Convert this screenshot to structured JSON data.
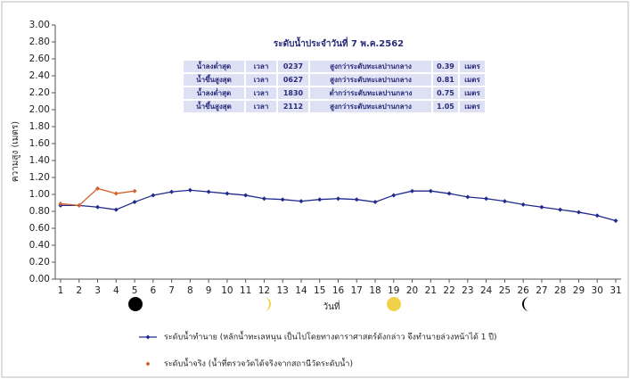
{
  "chart_data": {
    "type": "line",
    "title": "ระดับน้ำประจำวันที่ 7 พ.ค.2562",
    "y_label": "ความสูง (เมตร)",
    "x_label": "วันที่",
    "categories": [
      "1",
      "2",
      "3",
      "4",
      "5",
      "6",
      "7",
      "8",
      "9",
      "10",
      "11",
      "12",
      "13",
      "14",
      "15",
      "16",
      "17",
      "18",
      "19",
      "20",
      "21",
      "22",
      "23",
      "24",
      "25",
      "26",
      "27",
      "28",
      "29",
      "30",
      "31"
    ],
    "series": [
      {
        "name": "ระดับน้ำทำนาย (หลักน้ำทะเลหนุน เป็นไปโดยทางดาราศาสตร์ดังกล่าว จึงทำนายล่วงหน้าได้ 1 ปี)",
        "color": "#1f2a8c",
        "values": [
          0.87,
          0.87,
          0.85,
          0.82,
          0.91,
          0.99,
          1.03,
          1.05,
          1.03,
          1.01,
          0.99,
          0.95,
          0.94,
          0.92,
          0.94,
          0.95,
          0.94,
          0.91,
          0.99,
          1.04,
          1.04,
          1.01,
          0.97,
          0.95,
          0.92,
          0.88,
          0.85,
          0.82,
          0.79,
          0.75,
          0.69
        ]
      },
      {
        "name": "ระดับน้ำจริง (น้ำที่ตรวจวัดได้จริงจากสถานีวัดระดับน้ำ)",
        "color": "#d4622a",
        "values": [
          0.89,
          0.87,
          1.07,
          1.01,
          1.04,
          null,
          null,
          null,
          null,
          null,
          null,
          null,
          null,
          null,
          null,
          null,
          null,
          null,
          null,
          null,
          null,
          null,
          null,
          null,
          null,
          null,
          null,
          null,
          null,
          null,
          null
        ]
      }
    ],
    "ylim": [
      0,
      3
    ],
    "yticks": [
      {
        "value": 0,
        "label": "0.00"
      },
      {
        "value": 0.2,
        "label": "0.20"
      },
      {
        "value": 0.4,
        "label": "0.40"
      },
      {
        "value": 0.6,
        "label": "0.60"
      },
      {
        "value": 0.8,
        "label": "0.80"
      },
      {
        "value": 1,
        "label": "1.00"
      },
      {
        "value": 1.2,
        "label": "1.20"
      },
      {
        "value": 1.4,
        "label": "1.40"
      },
      {
        "value": 1.6,
        "label": "1.60"
      },
      {
        "value": 1.8,
        "label": "1.80"
      },
      {
        "value": 2,
        "label": "2.00"
      },
      {
        "value": 2.2,
        "label": "2.20"
      },
      {
        "value": 2.4,
        "label": "2.40"
      },
      {
        "value": 2.6,
        "label": "2.60"
      },
      {
        "value": 2.8,
        "label": "2.80"
      },
      {
        "value": 3,
        "label": "3.00"
      }
    ],
    "grid": false,
    "info_table": {
      "rows": [
        [
          "น้ำลงต่ำสุด",
          "เวลา",
          "0237",
          "สูงกว่าระดับทะเลปานกลาง",
          "0.39",
          "เมตร"
        ],
        [
          "น้ำขึ้นสูงสุด",
          "เวลา",
          "0627",
          "สูงกว่าระดับทะเลปานกลาง",
          "0.81",
          "เมตร"
        ],
        [
          "น้ำลงต่ำสุด",
          "เวลา",
          "1830",
          "ต่ำกว่าระดับทะเลปานกลาง",
          "0.75",
          "เมตร"
        ],
        [
          "น้ำขึ้นสูงสุด",
          "เวลา",
          "2112",
          "สูงกว่าระดับทะเลปานกลาง",
          "1.05",
          "เมตร"
        ]
      ]
    }
  }
}
